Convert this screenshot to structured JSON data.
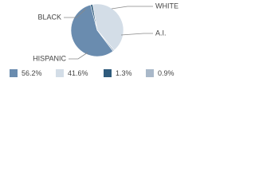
{
  "chart_data": {
    "type": "pie",
    "categories": [
      "HISPANIC",
      "WHITE",
      "BLACK",
      "A.I."
    ],
    "values": [
      56.2,
      41.6,
      1.3,
      0.9
    ],
    "value_labels": [
      "56.2%",
      "41.6%",
      "1.3%",
      "0.9%"
    ],
    "colors": [
      "#6a8caf",
      "#d3dde7",
      "#2f5b7c",
      "#a9b8c9"
    ]
  }
}
